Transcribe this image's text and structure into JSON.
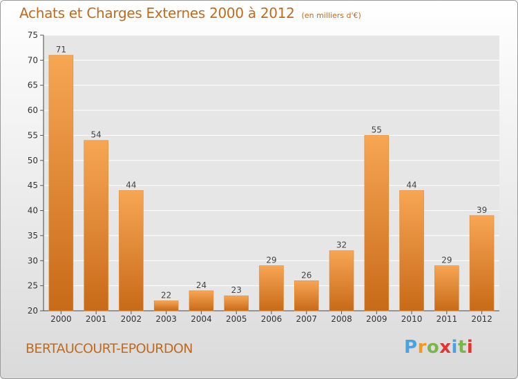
{
  "header": {
    "title": "Achats et Charges Externes 2000 à 2012",
    "unit": "(en milliers d'€)"
  },
  "footer": {
    "commune": "BERTAUCOURT-EPOURDON",
    "logo": "Proxiti"
  },
  "colors": {
    "accent": "#c26a1c",
    "bar_top": "#f7a654",
    "bar_bottom": "#c86a18"
  },
  "chart_data": {
    "type": "bar",
    "title": "Achats et Charges Externes 2000 à 2012",
    "subtitle": "(en milliers d'€)",
    "xlabel": "",
    "ylabel": "",
    "categories": [
      "2000",
      "2001",
      "2002",
      "2003",
      "2004",
      "2005",
      "2006",
      "2007",
      "2008",
      "2009",
      "2010",
      "2011",
      "2012"
    ],
    "values": [
      71,
      54,
      44,
      22,
      24,
      23,
      29,
      26,
      32,
      55,
      44,
      29,
      39
    ],
    "ylim": [
      20,
      75
    ],
    "yticks": [
      20,
      25,
      30,
      35,
      40,
      45,
      50,
      55,
      60,
      65,
      70,
      75
    ],
    "grid": true,
    "legend": "none"
  }
}
